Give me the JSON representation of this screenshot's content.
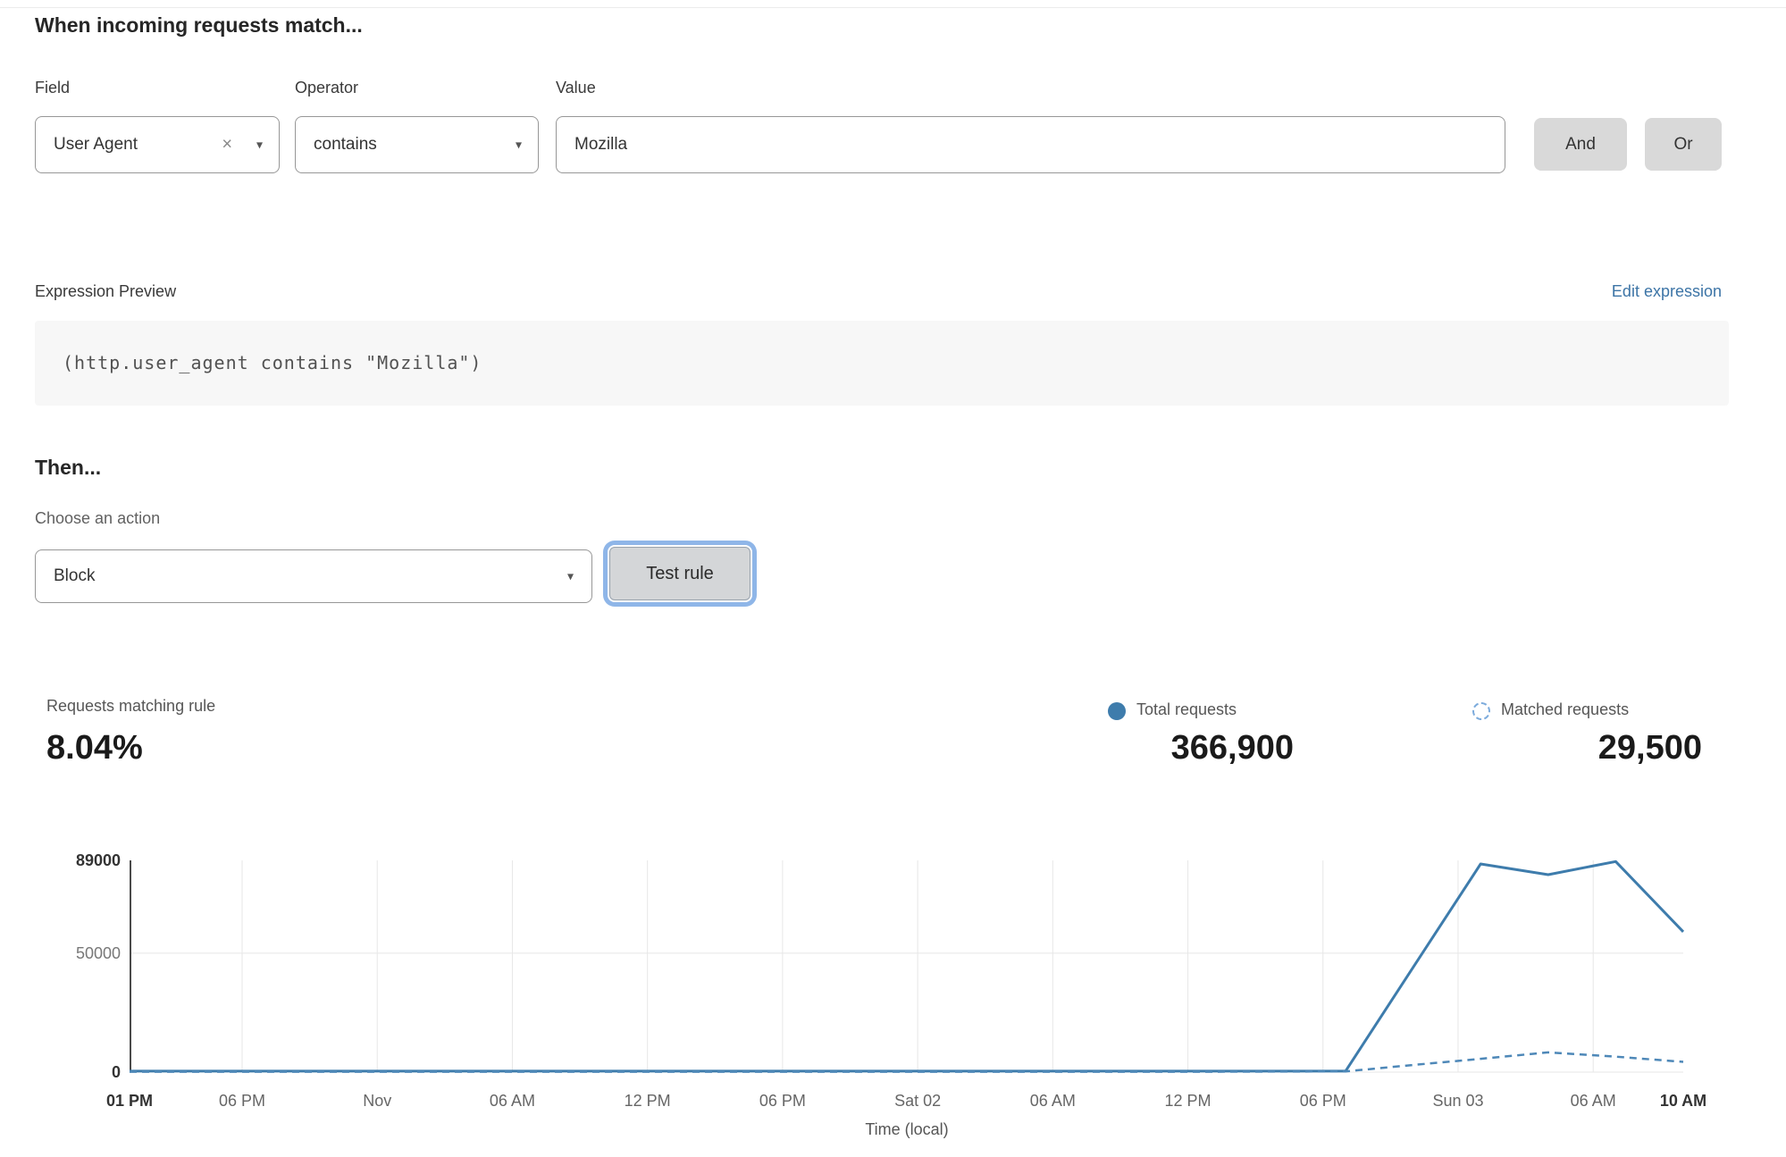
{
  "section_match": {
    "heading": "When incoming requests match...",
    "field_label": "Field",
    "operator_label": "Operator",
    "value_label": "Value",
    "field_value": "User Agent",
    "operator_value": "contains",
    "value_value": "Mozilla",
    "and_button": "And",
    "or_button": "Or",
    "clear_icon": "×",
    "caret_icon": "▾"
  },
  "expression": {
    "label": "Expression Preview",
    "edit_link": "Edit expression",
    "code": "(http.user_agent contains \"Mozilla\")"
  },
  "section_then": {
    "heading": "Then...",
    "action_label": "Choose an action",
    "action_value": "Block",
    "test_button": "Test rule"
  },
  "stats": {
    "matching_label": "Requests matching rule",
    "matching_value": "8.04%",
    "total_label": "Total requests",
    "total_value": "366,900",
    "matched_label": "Matched requests",
    "matched_value": "29,500"
  },
  "chart_data": {
    "type": "line",
    "title": "",
    "xlabel": "Time (local)",
    "ylabel": "",
    "ylim": [
      0,
      89000
    ],
    "xlim_hours": [
      0,
      69
    ],
    "grid": true,
    "legend_position": "top-right",
    "colors": {
      "total": "#3e7cac",
      "matched": "#4e88b8",
      "gridline": "#e7e7e7",
      "axis": "#4a4a4a"
    },
    "y_ticks": [
      {
        "value": 0,
        "label": "0",
        "bold": true
      },
      {
        "value": 50000,
        "label": "50000",
        "bold": false
      },
      {
        "value": 89000,
        "label": "89000",
        "bold": true
      }
    ],
    "x_ticks": [
      {
        "hour": 0,
        "label": "01 PM",
        "bold": true
      },
      {
        "hour": 5,
        "label": "06 PM",
        "bold": false
      },
      {
        "hour": 11,
        "label": "Nov",
        "bold": false
      },
      {
        "hour": 17,
        "label": "06 AM",
        "bold": false
      },
      {
        "hour": 23,
        "label": "12 PM",
        "bold": false
      },
      {
        "hour": 29,
        "label": "06 PM",
        "bold": false
      },
      {
        "hour": 35,
        "label": "Sat 02",
        "bold": false
      },
      {
        "hour": 41,
        "label": "06 AM",
        "bold": false
      },
      {
        "hour": 47,
        "label": "12 PM",
        "bold": false
      },
      {
        "hour": 53,
        "label": "06 PM",
        "bold": false
      },
      {
        "hour": 59,
        "label": "Sun 03",
        "bold": false
      },
      {
        "hour": 65,
        "label": "06 AM",
        "bold": false
      },
      {
        "hour": 69,
        "label": "10 AM",
        "bold": true
      }
    ],
    "series": [
      {
        "name": "Total requests",
        "style": "solid",
        "color": "#3e7cac",
        "points": [
          [
            0,
            400
          ],
          [
            6,
            400
          ],
          [
            12,
            400
          ],
          [
            18,
            400
          ],
          [
            24,
            400
          ],
          [
            30,
            400
          ],
          [
            36,
            400
          ],
          [
            42,
            400
          ],
          [
            48,
            400
          ],
          [
            54,
            400
          ],
          [
            57,
            44000
          ],
          [
            60,
            87500
          ],
          [
            63,
            83000
          ],
          [
            66,
            88500
          ],
          [
            69,
            59000
          ]
        ]
      },
      {
        "name": "Matched requests",
        "style": "dashed",
        "color": "#4e88b8",
        "points": [
          [
            0,
            150
          ],
          [
            6,
            150
          ],
          [
            12,
            150
          ],
          [
            18,
            150
          ],
          [
            24,
            150
          ],
          [
            30,
            150
          ],
          [
            36,
            150
          ],
          [
            42,
            150
          ],
          [
            48,
            150
          ],
          [
            54,
            300
          ],
          [
            57,
            3000
          ],
          [
            60,
            5600
          ],
          [
            63,
            8300
          ],
          [
            66,
            6500
          ],
          [
            69,
            4300
          ]
        ]
      }
    ]
  }
}
